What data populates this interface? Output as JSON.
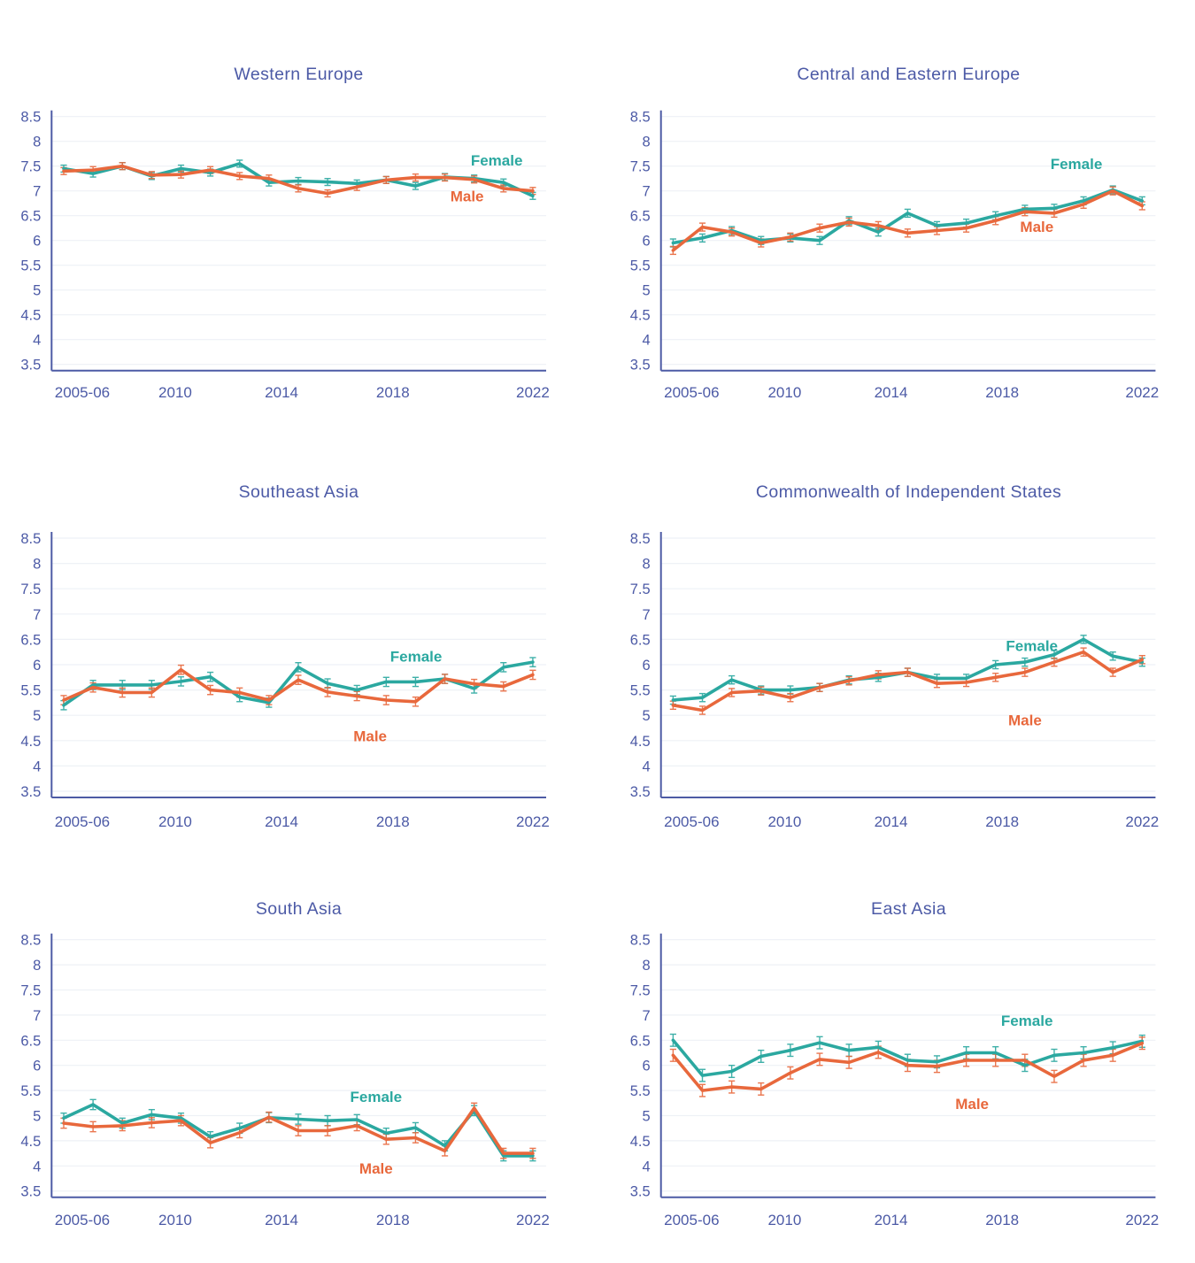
{
  "page": {
    "background": "#ffffff"
  },
  "colors": {
    "female": "#2BA8A0",
    "male": "#E8683C",
    "axis_line": "#4D5BA5",
    "tick_text": "#4C5AA6",
    "title_text": "#4C5AA6",
    "gridline": "#EEF1F6"
  },
  "series_labels": {
    "female": "Female",
    "male": "Male"
  },
  "x_years": [
    "2005-06",
    "2007",
    "2008",
    "2009",
    "2010",
    "2011",
    "2012",
    "2013",
    "2014",
    "2015",
    "2016",
    "2017",
    "2018",
    "2019",
    "2020",
    "2021",
    "2022"
  ],
  "x_tick_labels": [
    "2005-06",
    "2010",
    "2014",
    "2018",
    "2022"
  ],
  "y_tick_labels": [
    "8.5",
    "8",
    "7.5",
    "7",
    "6.5",
    "6",
    "5.5",
    "5",
    "4.5",
    "4",
    "3.5"
  ],
  "chart_data": [
    {
      "type": "line",
      "title": "Western Europe",
      "ylim": [
        3.5,
        8.5
      ],
      "y_step": 0.5,
      "grid": true,
      "error_halfwidth": 0.07,
      "series": [
        {
          "name": "Female",
          "values": [
            7.45,
            7.35,
            7.5,
            7.3,
            7.45,
            7.37,
            7.55,
            7.17,
            7.2,
            7.18,
            7.15,
            7.22,
            7.1,
            7.28,
            7.25,
            7.17,
            6.9
          ]
        },
        {
          "name": "Male",
          "values": [
            7.4,
            7.42,
            7.5,
            7.32,
            7.33,
            7.42,
            7.3,
            7.25,
            7.05,
            6.95,
            7.08,
            7.22,
            7.27,
            7.27,
            7.23,
            7.05,
            7.0
          ]
        }
      ],
      "legend_pos": {
        "female": [
          0.9,
          7.62
        ],
        "male": [
          0.84,
          6.9
        ]
      }
    },
    {
      "type": "line",
      "title": "Central and Eastern Europe",
      "ylim": [
        3.5,
        8.5
      ],
      "y_step": 0.5,
      "grid": true,
      "error_halfwidth": 0.08,
      "series": [
        {
          "name": "Female",
          "values": [
            5.95,
            6.05,
            6.2,
            6.0,
            6.05,
            6.0,
            6.4,
            6.17,
            6.55,
            6.3,
            6.35,
            6.5,
            6.63,
            6.65,
            6.8,
            7.02,
            6.8
          ]
        },
        {
          "name": "Male",
          "values": [
            5.8,
            6.27,
            6.17,
            5.95,
            6.07,
            6.25,
            6.37,
            6.3,
            6.15,
            6.2,
            6.25,
            6.4,
            6.58,
            6.55,
            6.73,
            7.0,
            6.7
          ]
        }
      ],
      "legend_pos": {
        "female": [
          0.84,
          7.55
        ],
        "male": [
          0.76,
          6.28
        ]
      }
    },
    {
      "type": "line",
      "title": "Southeast Asia",
      "ylim": [
        3.5,
        8.5
      ],
      "y_step": 0.5,
      "grid": true,
      "error_halfwidth": 0.09,
      "series": [
        {
          "name": "Female",
          "values": [
            5.2,
            5.6,
            5.6,
            5.6,
            5.67,
            5.76,
            5.36,
            5.25,
            5.95,
            5.63,
            5.5,
            5.66,
            5.66,
            5.72,
            5.53,
            5.95,
            6.05
          ]
        },
        {
          "name": "Male",
          "values": [
            5.3,
            5.55,
            5.45,
            5.45,
            5.9,
            5.5,
            5.45,
            5.3,
            5.7,
            5.46,
            5.38,
            5.3,
            5.27,
            5.72,
            5.62,
            5.57,
            5.8
          ]
        }
      ],
      "legend_pos": {
        "female": [
          0.737,
          6.17
        ],
        "male": [
          0.644,
          4.59
        ]
      }
    },
    {
      "type": "line",
      "title": "Commonwealth of Independent States",
      "ylim": [
        3.5,
        8.5
      ],
      "y_step": 0.5,
      "grid": true,
      "error_halfwidth": 0.08,
      "series": [
        {
          "name": "Female",
          "values": [
            5.3,
            5.35,
            5.7,
            5.5,
            5.5,
            5.55,
            5.7,
            5.75,
            5.85,
            5.73,
            5.73,
            6.0,
            6.05,
            6.2,
            6.5,
            6.17,
            6.05
          ]
        },
        {
          "name": "Male",
          "values": [
            5.2,
            5.1,
            5.45,
            5.48,
            5.35,
            5.55,
            5.68,
            5.8,
            5.85,
            5.63,
            5.65,
            5.75,
            5.85,
            6.05,
            6.25,
            5.85,
            6.1
          ]
        }
      ],
      "legend_pos": {
        "female": [
          0.75,
          6.38
        ],
        "male": [
          0.736,
          4.91
        ]
      }
    },
    {
      "type": "line",
      "title": "South Asia",
      "ylim": [
        3.5,
        8.5
      ],
      "y_step": 0.5,
      "grid": true,
      "error_halfwidth": 0.1,
      "series": [
        {
          "name": "Female",
          "values": [
            4.95,
            5.22,
            4.85,
            5.02,
            4.95,
            4.58,
            4.75,
            4.96,
            4.93,
            4.9,
            4.92,
            4.65,
            4.76,
            4.4,
            5.1,
            4.2,
            4.2
          ]
        },
        {
          "name": "Male",
          "values": [
            4.85,
            4.78,
            4.8,
            4.86,
            4.9,
            4.46,
            4.66,
            4.97,
            4.7,
            4.7,
            4.8,
            4.53,
            4.56,
            4.3,
            5.15,
            4.25,
            4.25
          ]
        }
      ],
      "legend_pos": {
        "female": [
          0.656,
          5.38
        ],
        "male": [
          0.656,
          3.95
        ]
      }
    },
    {
      "type": "line",
      "title": "East Asia",
      "ylim": [
        3.5,
        8.5
      ],
      "y_step": 0.5,
      "grid": true,
      "error_halfwidth": 0.12,
      "series": [
        {
          "name": "Female",
          "values": [
            6.5,
            5.8,
            5.88,
            6.18,
            6.3,
            6.45,
            6.3,
            6.36,
            6.1,
            6.07,
            6.25,
            6.25,
            6.0,
            6.2,
            6.25,
            6.35,
            6.48
          ]
        },
        {
          "name": "Male",
          "values": [
            6.2,
            5.5,
            5.57,
            5.53,
            5.85,
            6.12,
            6.06,
            6.26,
            6.0,
            5.98,
            6.1,
            6.1,
            6.1,
            5.78,
            6.1,
            6.2,
            6.44
          ]
        }
      ],
      "legend_pos": {
        "female": [
          0.74,
          6.89
        ],
        "male": [
          0.629,
          5.24
        ]
      }
    }
  ]
}
